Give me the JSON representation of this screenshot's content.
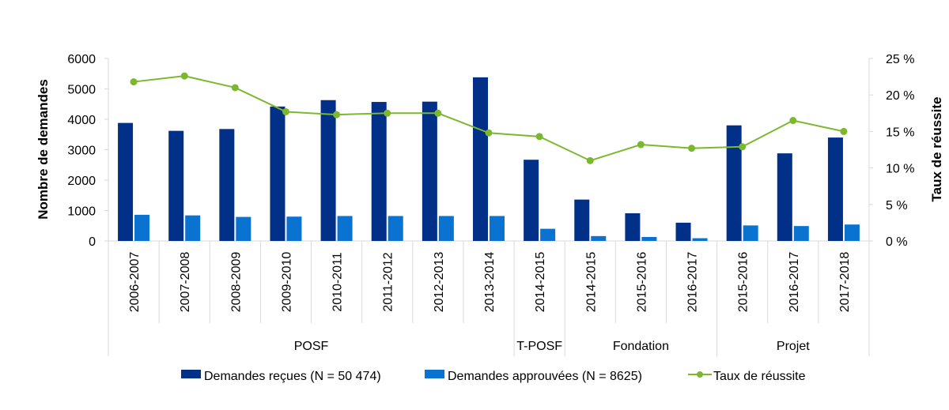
{
  "chart_data": {
    "type": "bar",
    "categories": [
      "2006-2007",
      "2007-2008",
      "2008-2009",
      "2009-2010",
      "2010-2011",
      "2011-2012",
      "2012-2013",
      "2013-2014",
      "2014-2015",
      "2014-2015",
      "2015-2016",
      "2016-2017",
      "2015-2016",
      "2016-2017",
      "2017-2018"
    ],
    "groups": [
      {
        "label": "POSF",
        "from": 0,
        "to": 7
      },
      {
        "label": "T-POSF",
        "from": 8,
        "to": 8
      },
      {
        "label": "Fondation",
        "from": 9,
        "to": 11
      },
      {
        "label": "Projet",
        "from": 12,
        "to": 14
      }
    ],
    "series": [
      {
        "name": "Demandes reçues (N = 50 474)",
        "kind": "bar",
        "axis": "left",
        "color": "#003087",
        "values": [
          3880,
          3620,
          3680,
          4420,
          4630,
          4570,
          4580,
          5380,
          2670,
          1360,
          910,
          600,
          3800,
          2880,
          3400
        ]
      },
      {
        "name": "Demandes approuvées (N = 8625)",
        "kind": "bar",
        "axis": "left",
        "color": "#0a73d1",
        "values": [
          860,
          840,
          790,
          800,
          820,
          820,
          820,
          820,
          400,
          160,
          130,
          90,
          510,
          490,
          540
        ]
      },
      {
        "name": "Taux de réussite",
        "kind": "line",
        "axis": "right",
        "color": "#7cb82f",
        "values": [
          21.8,
          22.6,
          21.0,
          17.7,
          17.3,
          17.5,
          17.5,
          14.8,
          14.3,
          11.0,
          13.2,
          12.7,
          12.9,
          16.5,
          15.0
        ]
      }
    ],
    "ylabel": "Nombre de demandes",
    "y2label": "Taux de réussite",
    "ylim": [
      0,
      6000
    ],
    "yticks": [
      "0",
      "1000",
      "2000",
      "3000",
      "4000",
      "5000",
      "6000"
    ],
    "y2lim": [
      0,
      25
    ],
    "y2ticks": [
      "0 %",
      "5 %",
      "10 %",
      "15 %",
      "20 %",
      "25 %"
    ],
    "grid": false,
    "legend_position": "bottom"
  }
}
